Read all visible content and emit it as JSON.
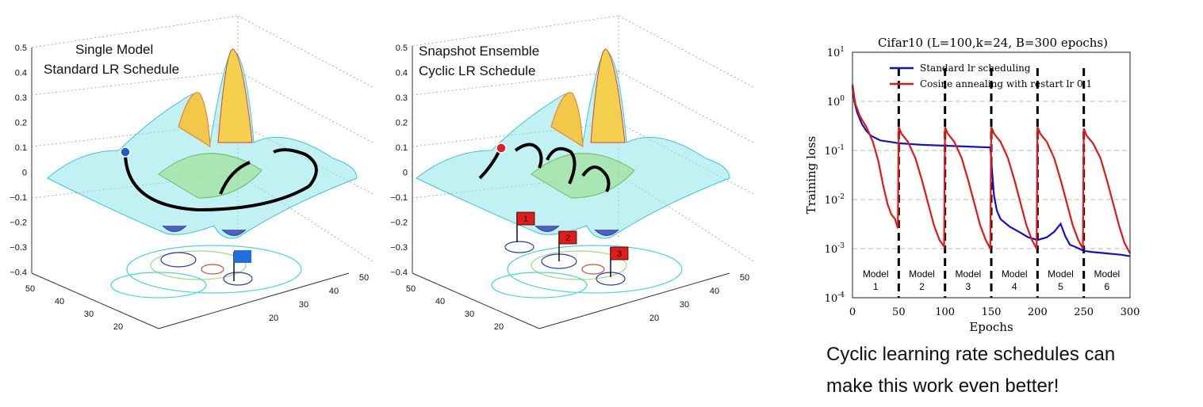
{
  "surface_left": {
    "title_line1": "Single Model",
    "title_line2": "Standard LR Schedule",
    "z_ticks": [
      "0.5",
      "0.4",
      "0.3",
      "0.2",
      "0.1",
      "0",
      "−0.1",
      "−0.2",
      "−0.3",
      "−0.4"
    ],
    "left_ticks": [
      "50",
      "40",
      "30",
      "20"
    ],
    "right_ticks": [
      "20",
      "30",
      "40",
      "50"
    ],
    "flags": [
      {
        "label": "",
        "color": "#1f6fe0"
      }
    ],
    "start_marker_color": "#1f5fd0"
  },
  "surface_right": {
    "title_line1": "Snapshot Ensemble",
    "title_line2": "Cyclic LR Schedule",
    "z_ticks": [
      "0.5",
      "0.4",
      "0.3",
      "0.2",
      "0.1",
      "0",
      "−0.1",
      "−0.2",
      "−0.3",
      "−0.4"
    ],
    "left_ticks": [
      "50",
      "40",
      "30",
      "20"
    ],
    "right_ticks": [
      "20",
      "30",
      "40",
      "50"
    ],
    "flags": [
      {
        "label": "1",
        "color": "#e21b1b"
      },
      {
        "label": "2",
        "color": "#e21b1b"
      },
      {
        "label": "3",
        "color": "#e21b1b"
      }
    ],
    "start_marker_color": "#e02020"
  },
  "chart_data": {
    "type": "line",
    "title": "Cifar10 (L=100,k=24, B=300 epochs)",
    "xlabel": "Epochs",
    "ylabel": "Training loss",
    "xlim": [
      0,
      300
    ],
    "ylim_log10": [
      -4,
      1
    ],
    "yscale": "log",
    "x_ticks": [
      "0",
      "50",
      "100",
      "150",
      "200",
      "250",
      "300"
    ],
    "y_ticks": [
      "10^1",
      "10^0",
      "10^-1",
      "10^-2",
      "10^-3",
      "10^-4"
    ],
    "grid": true,
    "legend_position": "top-left",
    "restart_epochs": [
      50,
      100,
      150,
      200,
      250
    ],
    "model_labels": [
      {
        "line1": "Model",
        "line2": "1"
      },
      {
        "line1": "Model",
        "line2": "2"
      },
      {
        "line1": "Model",
        "line2": "3"
      },
      {
        "line1": "Model",
        "line2": "4"
      },
      {
        "line1": "Model",
        "line2": "5"
      },
      {
        "line1": "Model",
        "line2": "6"
      }
    ],
    "series": [
      {
        "name": "Standard lr scheduling",
        "color": "#1010d0",
        "points": [
          [
            0,
            2.0
          ],
          [
            2,
            1.0
          ],
          [
            5,
            0.6
          ],
          [
            10,
            0.35
          ],
          [
            15,
            0.25
          ],
          [
            20,
            0.2
          ],
          [
            30,
            0.16
          ],
          [
            40,
            0.15
          ],
          [
            50,
            0.14
          ],
          [
            75,
            0.13
          ],
          [
            100,
            0.125
          ],
          [
            125,
            0.12
          ],
          [
            149,
            0.115
          ],
          [
            151,
            0.035
          ],
          [
            153,
            0.012
          ],
          [
            156,
            0.006
          ],
          [
            160,
            0.004
          ],
          [
            170,
            0.0028
          ],
          [
            180,
            0.0022
          ],
          [
            190,
            0.0017
          ],
          [
            200,
            0.0015
          ],
          [
            210,
            0.0017
          ],
          [
            218,
            0.0022
          ],
          [
            225,
            0.0032
          ],
          [
            230,
            0.0018
          ],
          [
            235,
            0.0012
          ],
          [
            240,
            0.0011
          ],
          [
            250,
            0.0009
          ],
          [
            260,
            0.00085
          ],
          [
            275,
            0.0008
          ],
          [
            290,
            0.00075
          ],
          [
            300,
            0.0007
          ]
        ]
      },
      {
        "name": "Cosine annealing with restart lr 0.1",
        "color": "#e01818",
        "points": [
          [
            0,
            2.2
          ],
          [
            3,
            0.9
          ],
          [
            8,
            0.5
          ],
          [
            15,
            0.3
          ],
          [
            22,
            0.15
          ],
          [
            28,
            0.06
          ],
          [
            33,
            0.02
          ],
          [
            38,
            0.008
          ],
          [
            42,
            0.005
          ],
          [
            46,
            0.004
          ],
          [
            49,
            0.0026
          ],
          [
            50,
            0.3
          ],
          [
            53,
            0.22
          ],
          [
            60,
            0.15
          ],
          [
            68,
            0.07
          ],
          [
            75,
            0.025
          ],
          [
            82,
            0.008
          ],
          [
            88,
            0.003
          ],
          [
            94,
            0.0015
          ],
          [
            99,
            0.0011
          ],
          [
            100,
            0.3
          ],
          [
            103,
            0.22
          ],
          [
            110,
            0.15
          ],
          [
            118,
            0.07
          ],
          [
            125,
            0.025
          ],
          [
            132,
            0.008
          ],
          [
            138,
            0.003
          ],
          [
            144,
            0.0015
          ],
          [
            149,
            0.001
          ],
          [
            150,
            0.3
          ],
          [
            153,
            0.22
          ],
          [
            160,
            0.15
          ],
          [
            168,
            0.07
          ],
          [
            175,
            0.025
          ],
          [
            182,
            0.008
          ],
          [
            188,
            0.003
          ],
          [
            194,
            0.0015
          ],
          [
            199,
            0.001
          ],
          [
            200,
            0.3
          ],
          [
            203,
            0.22
          ],
          [
            210,
            0.15
          ],
          [
            218,
            0.07
          ],
          [
            225,
            0.025
          ],
          [
            232,
            0.008
          ],
          [
            238,
            0.003
          ],
          [
            244,
            0.0015
          ],
          [
            249,
            0.001
          ],
          [
            250,
            0.28
          ],
          [
            253,
            0.2
          ],
          [
            260,
            0.14
          ],
          [
            268,
            0.07
          ],
          [
            275,
            0.025
          ],
          [
            282,
            0.008
          ],
          [
            288,
            0.003
          ],
          [
            294,
            0.0013
          ],
          [
            300,
            0.0008
          ]
        ]
      }
    ]
  },
  "caption": {
    "line1": "Cyclic learning rate schedules can",
    "line2": "make this work even better!"
  }
}
